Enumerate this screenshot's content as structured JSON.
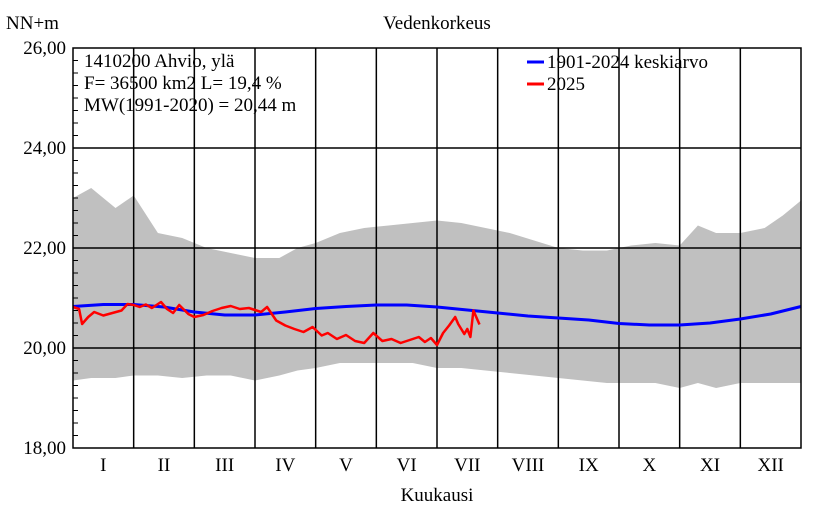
{
  "chart_data": {
    "type": "line",
    "title": "Vedenkorkeus",
    "ylabel": "NN+m",
    "xlabel": "Kuukausi",
    "ylim": [
      18,
      26
    ],
    "yticks": [
      "18,00",
      "20,00",
      "22,00",
      "24,00",
      "26,00"
    ],
    "ytick_values": [
      18,
      20,
      22,
      24,
      26
    ],
    "categories": [
      "I",
      "II",
      "III",
      "IV",
      "V",
      "VI",
      "VII",
      "VIII",
      "IX",
      "X",
      "XI",
      "XII"
    ],
    "grid": true,
    "legend_position": "top-right",
    "info_lines": [
      "1410200 Ahvio, ylä",
      "F=  36500 km2 L=  19,4 %",
      "MW(1991-2020) = 20,44 m"
    ],
    "band": {
      "color": "#c0c0c0",
      "x": [
        0,
        0.3,
        0.7,
        1.0,
        1.4,
        1.8,
        2.2,
        2.6,
        3.0,
        3.4,
        3.7,
        4.0,
        4.4,
        4.8,
        5.2,
        5.6,
        6.0,
        6.4,
        6.8,
        7.2,
        7.6,
        8.0,
        8.4,
        8.8,
        9.2,
        9.6,
        10.0,
        10.3,
        10.6,
        11.0,
        11.4,
        11.7,
        12.0
      ],
      "upper": [
        23.0,
        23.2,
        22.8,
        23.05,
        22.3,
        22.2,
        22.0,
        21.9,
        21.8,
        21.8,
        22.0,
        22.1,
        22.3,
        22.4,
        22.45,
        22.5,
        22.55,
        22.5,
        22.4,
        22.3,
        22.15,
        22.0,
        21.95,
        21.95,
        22.05,
        22.1,
        22.05,
        22.45,
        22.3,
        22.3,
        22.4,
        22.65,
        22.95
      ],
      "lower": [
        19.35,
        19.4,
        19.4,
        19.45,
        19.45,
        19.4,
        19.45,
        19.45,
        19.35,
        19.45,
        19.55,
        19.6,
        19.7,
        19.7,
        19.7,
        19.7,
        19.6,
        19.6,
        19.55,
        19.5,
        19.45,
        19.4,
        19.35,
        19.3,
        19.3,
        19.3,
        19.2,
        19.3,
        19.2,
        19.3,
        19.3,
        19.3,
        19.3
      ]
    },
    "series": [
      {
        "name": "1901-2024 keskiarvo",
        "color": "#0000ff",
        "x": [
          0,
          0.5,
          1.0,
          1.5,
          2.0,
          2.5,
          3.0,
          3.5,
          4.0,
          4.5,
          5.0,
          5.5,
          6.0,
          6.5,
          7.0,
          7.5,
          8.0,
          8.5,
          9.0,
          9.5,
          10.0,
          10.5,
          11.0,
          11.5,
          12.0
        ],
        "values": [
          20.83,
          20.87,
          20.87,
          20.82,
          20.72,
          20.66,
          20.66,
          20.72,
          20.79,
          20.83,
          20.86,
          20.86,
          20.82,
          20.76,
          20.7,
          20.64,
          20.6,
          20.56,
          20.49,
          20.46,
          20.46,
          20.5,
          20.58,
          20.68,
          20.83
        ]
      },
      {
        "name": "2025",
        "color": "#ff0000",
        "x": [
          0,
          0.1,
          0.15,
          0.25,
          0.35,
          0.5,
          0.65,
          0.8,
          0.9,
          1.0,
          1.1,
          1.2,
          1.3,
          1.45,
          1.55,
          1.65,
          1.75,
          1.9,
          2.0,
          2.15,
          2.3,
          2.45,
          2.6,
          2.75,
          2.9,
          3.0,
          3.1,
          3.2,
          3.35,
          3.5,
          3.65,
          3.8,
          3.95,
          4.1,
          4.2,
          4.35,
          4.5,
          4.65,
          4.8,
          4.95,
          5.1,
          5.25,
          5.4,
          5.55,
          5.7,
          5.8,
          5.9,
          6.0,
          6.1,
          6.2,
          6.3,
          6.35,
          6.45,
          6.5,
          6.55,
          6.6,
          6.7
        ],
        "values": [
          20.82,
          20.78,
          20.48,
          20.62,
          20.72,
          20.65,
          20.7,
          20.75,
          20.88,
          20.86,
          20.82,
          20.87,
          20.8,
          20.92,
          20.78,
          20.7,
          20.86,
          20.68,
          20.62,
          20.66,
          20.74,
          20.8,
          20.84,
          20.78,
          20.8,
          20.76,
          20.72,
          20.82,
          20.55,
          20.45,
          20.38,
          20.32,
          20.42,
          20.25,
          20.3,
          20.18,
          20.26,
          20.14,
          20.1,
          20.3,
          20.14,
          20.18,
          20.1,
          20.16,
          20.22,
          20.12,
          20.2,
          20.06,
          20.3,
          20.45,
          20.62,
          20.48,
          20.28,
          20.38,
          20.22,
          20.75,
          20.47
        ]
      }
    ]
  }
}
